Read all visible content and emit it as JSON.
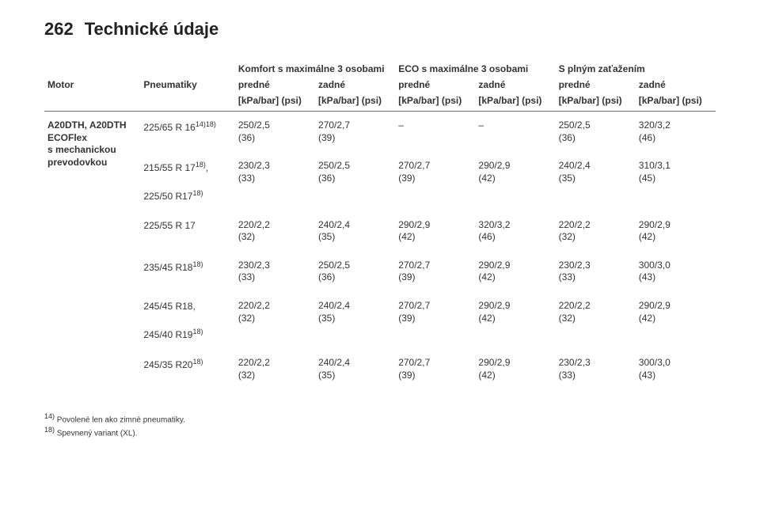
{
  "header": {
    "page_number": "262",
    "section_title": "Technické údaje"
  },
  "table": {
    "group_headers": {
      "blank1": "",
      "blank2": "",
      "comfort": "Komfort s maximálne 3 osobami",
      "eco": "ECO s maximálne 3 osobami",
      "full": "S plným zaťažením"
    },
    "sub_headers": {
      "motor": "Motor",
      "tires": "Pneumatiky",
      "front": "predné",
      "rear": "zadné"
    },
    "unit": "[kPa/bar] (psi)",
    "motor_label": "A20DTH, A20DTH ECOFlex s mechanickou prevodovkou",
    "rows": [
      {
        "tire": "225/65 R 16<span class='sup'>14)18)</span>",
        "tire2": "",
        "c_front": "250/2,5 (36)",
        "c_rear": "270/2,7 (39)",
        "e_front": "–",
        "e_rear": "–",
        "f_front": "250/2,5 (36)",
        "f_rear": "320/3,2 (46)"
      },
      {
        "tire": "215/55 R 17<span class='sup'>18)</span>,",
        "tire2": "225/50 R17<span class='sup'>18)</span>",
        "c_front": "230/2,3 (33)",
        "c_rear": "250/2,5 (36)",
        "e_front": "270/2,7 (39)",
        "e_rear": "290/2,9 (42)",
        "f_front": "240/2,4 (35)",
        "f_rear": "310/3,1 (45)"
      },
      {
        "tire": "225/55 R 17",
        "tire2": "",
        "c_front": "220/2,2 (32)",
        "c_rear": "240/2,4 (35)",
        "e_front": "290/2,9 (42)",
        "e_rear": "320/3,2 (46)",
        "f_front": "220/2,2 (32)",
        "f_rear": "290/2,9 (42)"
      },
      {
        "tire": "235/45 R18<span class='sup'>18)</span>",
        "tire2": "",
        "c_front": "230/2,3 (33)",
        "c_rear": "250/2,5 (36)",
        "e_front": "270/2,7 (39)",
        "e_rear": "290/2,9 (42)",
        "f_front": "230/2,3 (33)",
        "f_rear": "300/3,0 (43)"
      },
      {
        "tire": "245/45 R18,",
        "tire2": "245/40 R19<span class='sup'>18)</span>",
        "c_front": "220/2,2 (32)",
        "c_rear": "240/2,4 (35)",
        "e_front": "270/2,7 (39)",
        "e_rear": "290/2,9 (42)",
        "f_front": "220/2,2 (32)",
        "f_rear": "290/2,9 (42)"
      },
      {
        "tire": "245/35 R20<span class='sup'>18)</span>",
        "tire2": "",
        "c_front": "220/2,2 (32)",
        "c_rear": "240/2,4 (35)",
        "e_front": "270/2,7 (39)",
        "e_rear": "290/2,9 (42)",
        "f_front": "230/2,3 (33)",
        "f_rear": "300/3,0 (43)"
      }
    ]
  },
  "footnotes": [
    {
      "mark": "14)",
      "text": "Povolené len ako zimné pneumatiky."
    },
    {
      "mark": "18)",
      "text": "Spevnený variant (XL)."
    }
  ],
  "colors": {
    "text": "#333333",
    "heading": "#222222",
    "border": "#666666",
    "background": "#ffffff"
  },
  "fonts": {
    "heading_size_pt": 16,
    "body_size_pt": 9,
    "footnote_size_pt": 7
  }
}
